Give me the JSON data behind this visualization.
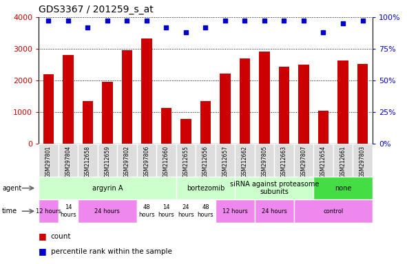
{
  "title": "GDS3367 / 201259_s_at",
  "samples": [
    "GSM297801",
    "GSM297804",
    "GSM212658",
    "GSM212659",
    "GSM297802",
    "GSM297806",
    "GSM212660",
    "GSM212655",
    "GSM212656",
    "GSM212657",
    "GSM212662",
    "GSM297805",
    "GSM212663",
    "GSM297807",
    "GSM212654",
    "GSM212661",
    "GSM297803"
  ],
  "counts": [
    2200,
    2800,
    1350,
    1950,
    2950,
    3320,
    1130,
    780,
    1350,
    2220,
    2700,
    2920,
    2430,
    2500,
    1050,
    2630,
    2530
  ],
  "percentiles": [
    97,
    97,
    92,
    97,
    97,
    97,
    92,
    88,
    92,
    97,
    97,
    97,
    97,
    97,
    88,
    95,
    97
  ],
  "bar_color": "#cc0000",
  "dot_color": "#0000cc",
  "ylim_left": [
    0,
    4000
  ],
  "ylim_right": [
    0,
    100
  ],
  "yticks_left": [
    0,
    1000,
    2000,
    3000,
    4000
  ],
  "yticks_right": [
    0,
    25,
    50,
    75,
    100
  ],
  "agent_groups": [
    {
      "label": "argyrin A",
      "start": 0,
      "end": 7,
      "color": "#ccffcc"
    },
    {
      "label": "bortezomib",
      "start": 7,
      "end": 10,
      "color": "#ccffcc"
    },
    {
      "label": "siRNA against proteasome\nsubunits",
      "start": 10,
      "end": 14,
      "color": "#ccffcc"
    },
    {
      "label": "none",
      "start": 14,
      "end": 17,
      "color": "#44dd44"
    }
  ],
  "time_groups": [
    {
      "label": "12 hours",
      "start": 0,
      "end": 1,
      "color": "#ee88ee"
    },
    {
      "label": "14\nhours",
      "start": 1,
      "end": 2,
      "color": "#ffffff"
    },
    {
      "label": "24 hours",
      "start": 2,
      "end": 5,
      "color": "#ee88ee"
    },
    {
      "label": "48\nhours",
      "start": 5,
      "end": 6,
      "color": "#ffffff"
    },
    {
      "label": "14\nhours",
      "start": 6,
      "end": 7,
      "color": "#ffffff"
    },
    {
      "label": "24\nhours",
      "start": 7,
      "end": 8,
      "color": "#ffffff"
    },
    {
      "label": "48\nhours",
      "start": 8,
      "end": 9,
      "color": "#ffffff"
    },
    {
      "label": "12 hours",
      "start": 9,
      "end": 11,
      "color": "#ee88ee"
    },
    {
      "label": "24 hours",
      "start": 11,
      "end": 13,
      "color": "#ee88ee"
    },
    {
      "label": "control",
      "start": 13,
      "end": 17,
      "color": "#ee88ee"
    }
  ],
  "legend_count_color": "#cc0000",
  "legend_dot_color": "#0000cc",
  "background_color": "#ffffff",
  "tick_label_color_left": "#cc0000",
  "tick_label_color_right": "#0000cc",
  "sample_bg_color": "#dddddd",
  "sample_border_color": "#ffffff"
}
